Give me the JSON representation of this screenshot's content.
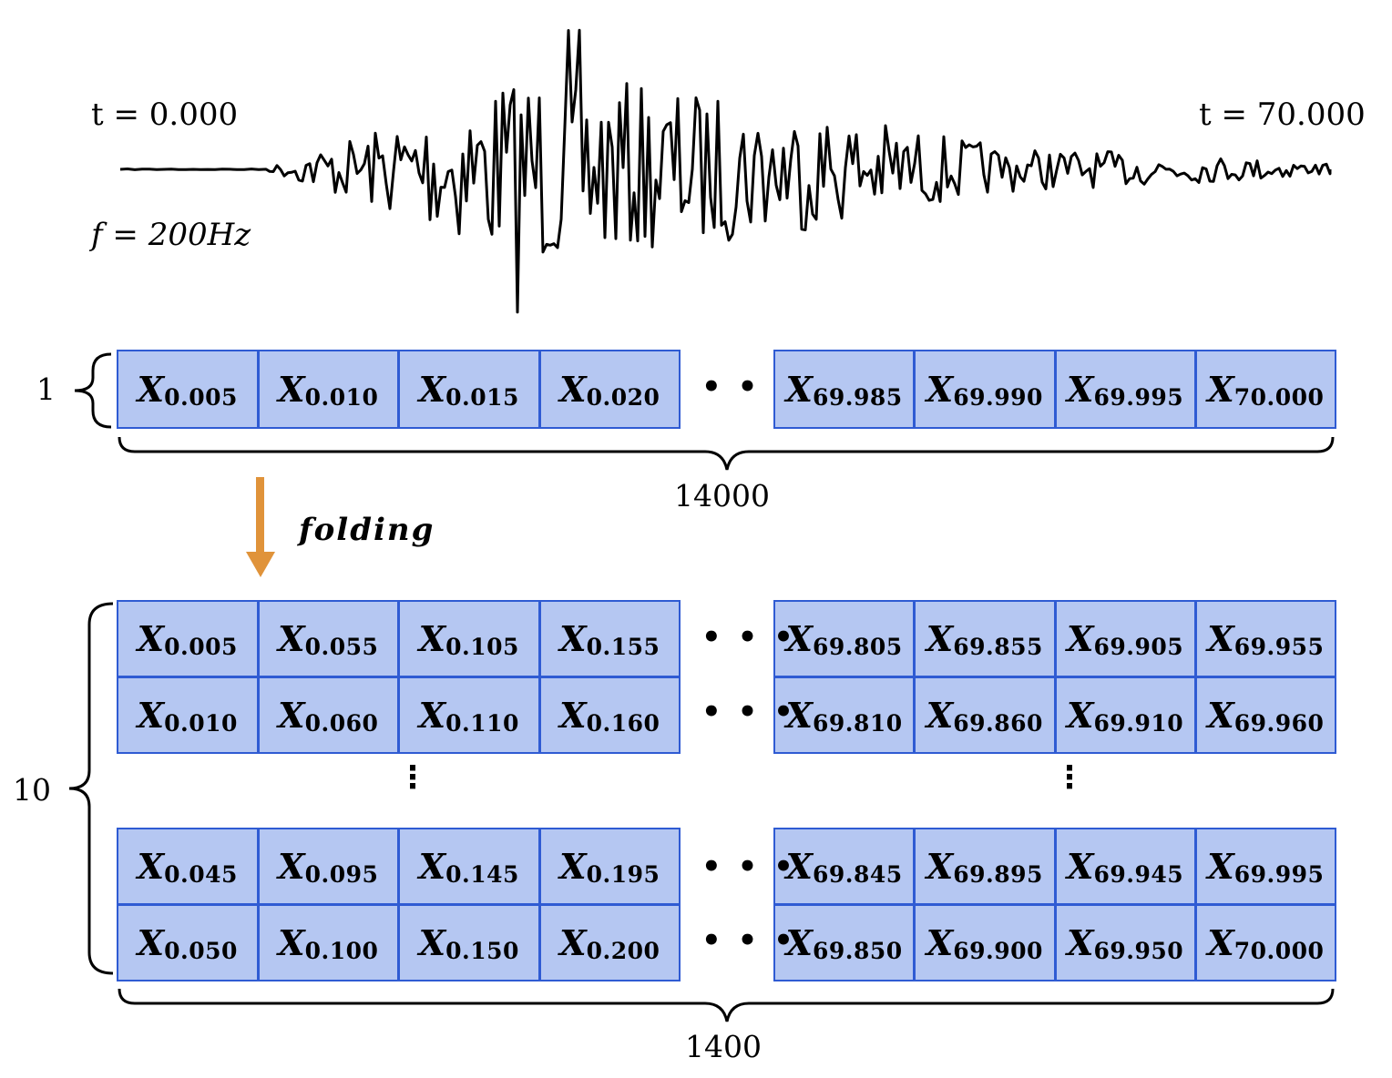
{
  "signal": {
    "t_start": "t = 0.000",
    "t_end": "t = 70.000",
    "freq": "f = 200Hz"
  },
  "before": {
    "rows_label": "1",
    "cols_label": "14000",
    "row": [
      [
        "X",
        "0.005"
      ],
      [
        "X",
        "0.010"
      ],
      [
        "X",
        "0.015"
      ],
      [
        "X",
        "0.020"
      ],
      [
        "X",
        "69.985"
      ],
      [
        "X",
        "69.990"
      ],
      [
        "X",
        "69.995"
      ],
      [
        "X",
        "70.000"
      ]
    ]
  },
  "operation": {
    "label": "folding",
    "arrow_color": "#e0933a"
  },
  "after": {
    "rows_label": "10",
    "cols_label": "1400",
    "top_rows": [
      [
        [
          "X",
          "0.005"
        ],
        [
          "X",
          "0.055"
        ],
        [
          "X",
          "0.105"
        ],
        [
          "X",
          "0.155"
        ],
        [
          "X",
          "69.805"
        ],
        [
          "X",
          "69.855"
        ],
        [
          "X",
          "69.905"
        ],
        [
          "X",
          "69.955"
        ]
      ],
      [
        [
          "X",
          "0.010"
        ],
        [
          "X",
          "0.060"
        ],
        [
          "X",
          "0.110"
        ],
        [
          "X",
          "0.160"
        ],
        [
          "X",
          "69.810"
        ],
        [
          "X",
          "69.860"
        ],
        [
          "X",
          "69.910"
        ],
        [
          "X",
          "69.960"
        ]
      ]
    ],
    "bottom_rows": [
      [
        [
          "X",
          "0.045"
        ],
        [
          "X",
          "0.095"
        ],
        [
          "X",
          "0.145"
        ],
        [
          "X",
          "0.195"
        ],
        [
          "X",
          "69.845"
        ],
        [
          "X",
          "69.895"
        ],
        [
          "X",
          "69.945"
        ],
        [
          "X",
          "69.995"
        ]
      ],
      [
        [
          "X",
          "0.050"
        ],
        [
          "X",
          "0.100"
        ],
        [
          "X",
          "0.150"
        ],
        [
          "X",
          "0.200"
        ],
        [
          "X",
          "69.850"
        ],
        [
          "X",
          "69.900"
        ],
        [
          "X",
          "69.950"
        ],
        [
          "X",
          "70.000"
        ]
      ]
    ]
  },
  "ellipsis_h": "• • •",
  "ellipsis_v": "⋮",
  "colors": {
    "cell_fill": "#b5c7f2",
    "cell_border": "#2f5bd3",
    "waveform": "#000000"
  }
}
